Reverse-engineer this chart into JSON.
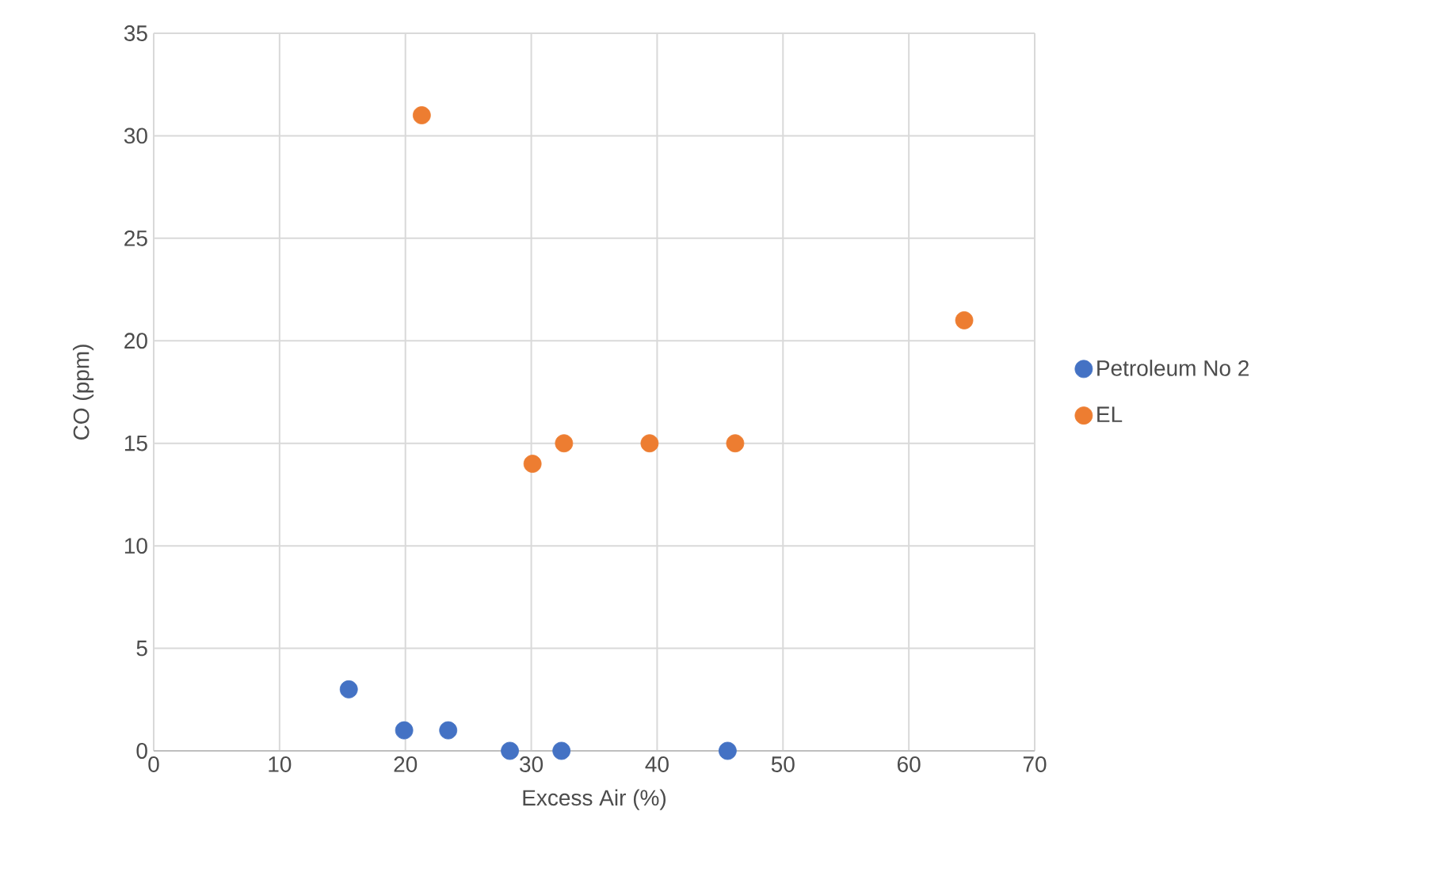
{
  "chart_data": {
    "type": "scatter",
    "xlabel": "Excess Air (%)",
    "ylabel": "CO (ppm)",
    "xlim": [
      0,
      70
    ],
    "xticks": [
      0,
      10,
      20,
      30,
      40,
      50,
      60,
      70
    ],
    "ylim": [
      0,
      35
    ],
    "yticks": [
      0,
      5,
      10,
      15,
      20,
      25,
      30,
      35
    ],
    "grid": true,
    "legend": "right",
    "marker": "circle",
    "series": [
      {
        "name": "Petroleum No 2",
        "color": "#4472c4",
        "x": [
          15.5,
          19.9,
          23.4,
          28.3,
          32.4,
          45.6
        ],
        "values": [
          3,
          1,
          1,
          0,
          0,
          0
        ]
      },
      {
        "name": "EL",
        "color": "#ed7d31",
        "x": [
          21.3,
          30.1,
          32.6,
          39.4,
          46.2,
          64.4
        ],
        "values": [
          31,
          14,
          15,
          15,
          15,
          21
        ]
      }
    ]
  }
}
